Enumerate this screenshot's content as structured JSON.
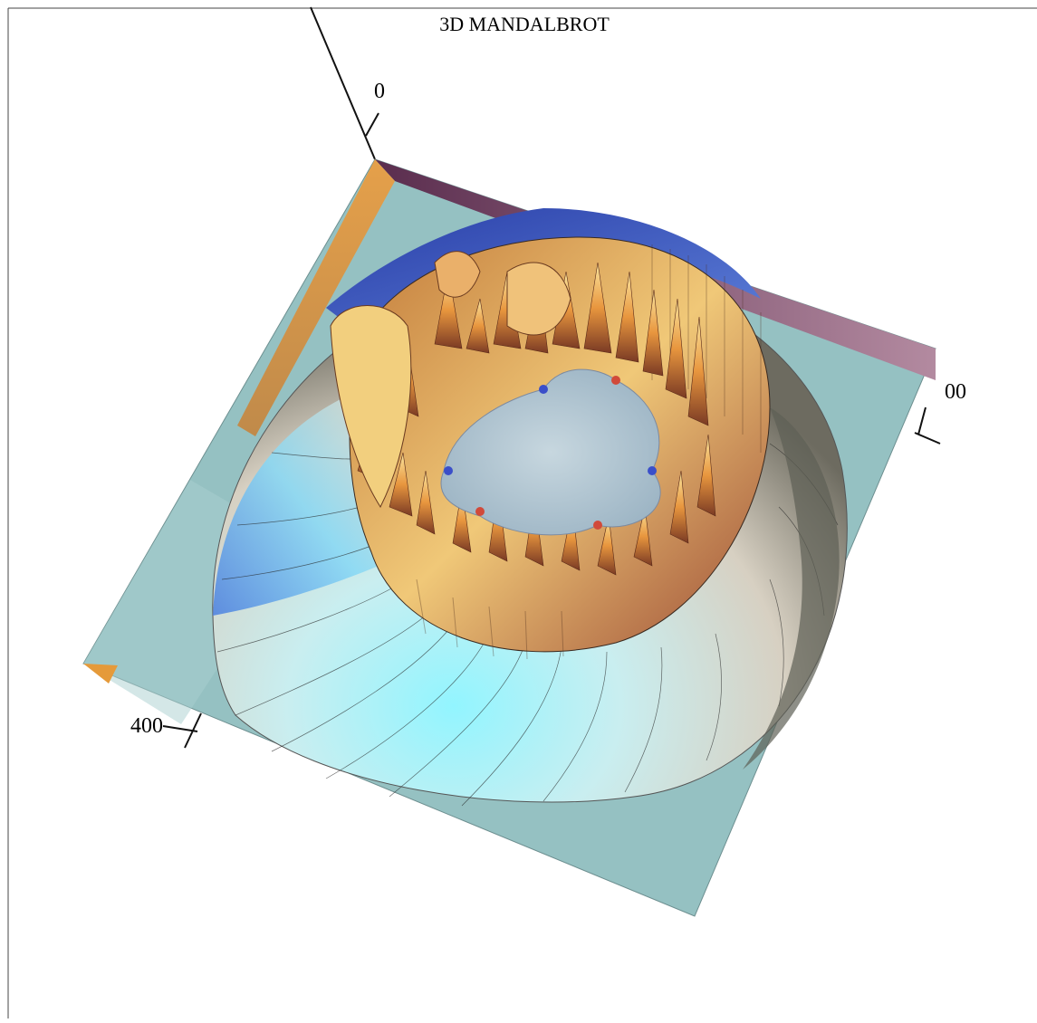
{
  "chart_data": {
    "type": "surface3d",
    "title": "3D MANDALBROT",
    "axes": {
      "vertical": {
        "tick_labels": [
          "0"
        ]
      },
      "right": {
        "tick_labels": [
          "00"
        ]
      },
      "left": {
        "tick_labels": [
          "400"
        ]
      }
    },
    "box": "open-left-bottom",
    "colormap": [
      "#1f2f9c",
      "#3b5fd6",
      "#8fe9ff",
      "#f5c46a",
      "#e48b3a",
      "#b6452f"
    ],
    "surface_base_color": "#95c1c2"
  }
}
